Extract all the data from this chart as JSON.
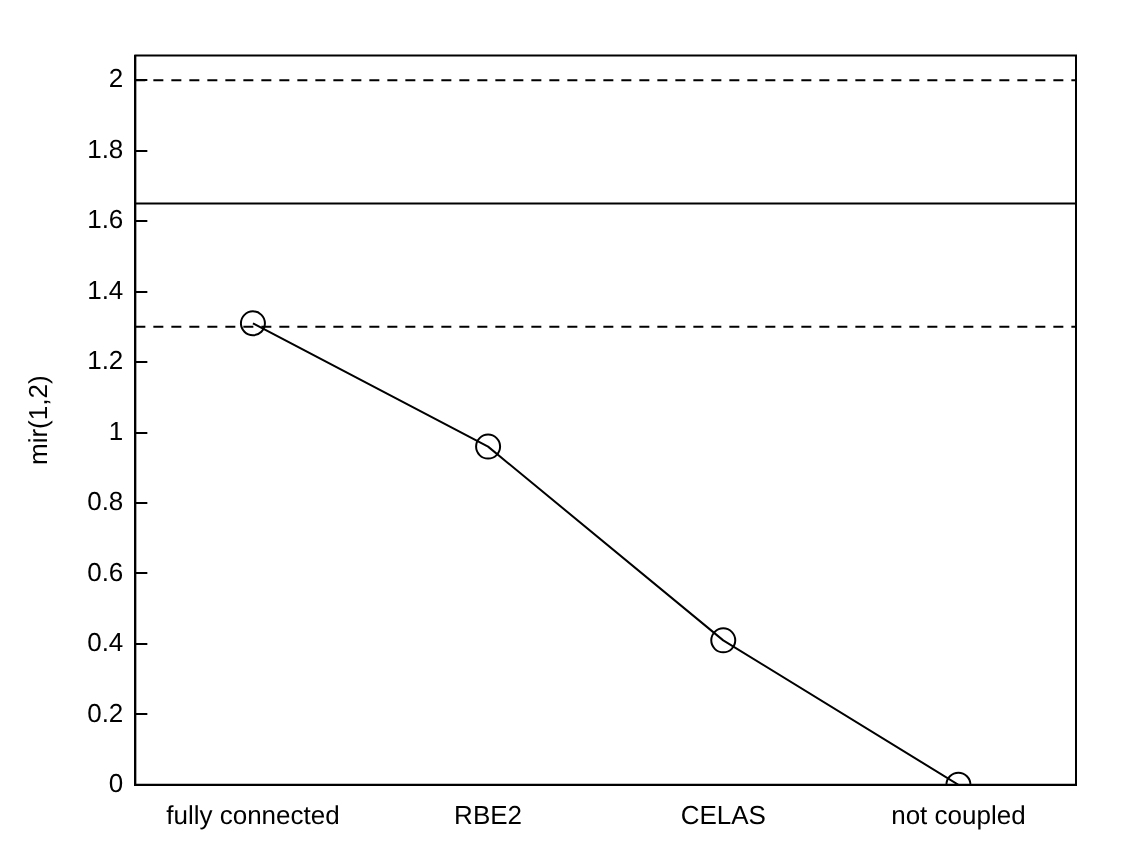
{
  "chart_data": {
    "type": "line",
    "ylabel": "mir(1,2)",
    "categories": [
      "fully connected",
      "RBE2",
      "CELAS",
      "not coupled"
    ],
    "series": [
      {
        "color": "#000000",
        "values": [
          1.31,
          0.96,
          0.41,
          0.0
        ]
      }
    ],
    "marker": "circle",
    "line_style": "solid",
    "ylim": [
      0,
      2.07
    ],
    "yticks": [
      0,
      0.2,
      0.4,
      0.6,
      0.8,
      1,
      1.2,
      1.4,
      1.6,
      1.8,
      2
    ],
    "grid": false,
    "legend": false,
    "ref_lines": [
      {
        "axis": "y",
        "value": 2,
        "line_style": "dashed",
        "color": "#000000"
      },
      {
        "axis": "y",
        "value": 1.65,
        "line_style": "solid",
        "color": "#000000"
      },
      {
        "axis": "y",
        "value": 1.3,
        "line_style": "dashed",
        "color": "#000000"
      }
    ]
  }
}
